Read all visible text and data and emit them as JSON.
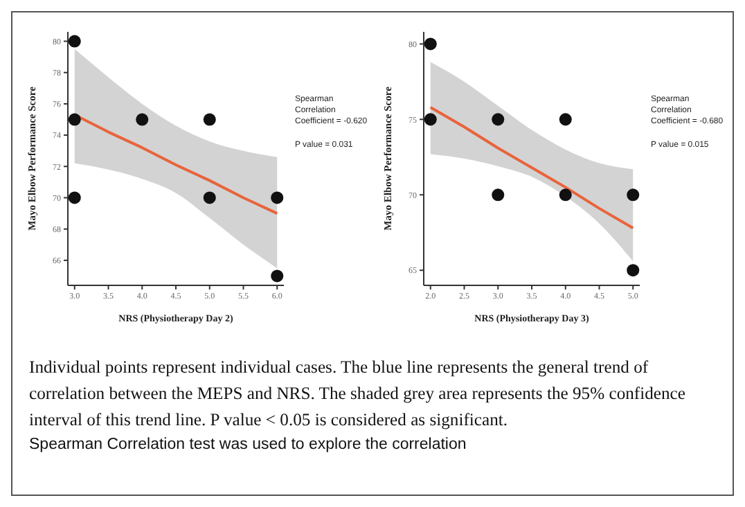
{
  "chart_data": [
    {
      "type": "scatter",
      "xlabel": "NRS (Physiotherapy Day 2)",
      "ylabel": "Mayo Elbow Performance Score",
      "xlim": [
        2.9,
        6.1
      ],
      "xticks": [
        {
          "value": 3,
          "label": "3.0"
        },
        3.5,
        {
          "value": 4,
          "label": "4.0"
        },
        4.5,
        {
          "value": 5,
          "label": "5.0"
        },
        5.5,
        {
          "value": 6,
          "label": "6.0"
        }
      ],
      "ylim": [
        64.4,
        80.6
      ],
      "yticks": [
        66,
        68,
        70,
        72,
        74,
        76,
        78,
        80
      ],
      "grid": false,
      "annotations": [
        "Spearman Correlation Coefficient = -0.620",
        "P value = 0.031",
        "Individual points represent individual cases. The blue line represents the general trend of correlation between the MEPS and NRS. The shaded grey area represents the 95% confidence interval of this trend line. P value < 0.05 is considered as significant.",
        "Spearman Correlation test was used to explore the correlation"
      ],
      "series": [
        {
          "color": "#111111",
          "marker": "circle",
          "x": [
            3,
            3,
            3,
            4,
            5,
            5,
            6,
            6
          ],
          "values": [
            80,
            75,
            70,
            75,
            75,
            70,
            70,
            65
          ]
        },
        {
          "type": "line",
          "marker": "none",
          "color": "#e8643c",
          "x": [
            3,
            3.5,
            4,
            4.5,
            5,
            5.5,
            6
          ],
          "values": [
            75.3,
            74.2,
            73.2,
            72.1,
            71.1,
            70.0,
            69.0
          ],
          "lower": [
            72.2,
            71.8,
            71.2,
            70.3,
            68.7,
            67.0,
            65.5
          ],
          "upper": [
            79.5,
            77.7,
            76.0,
            74.6,
            73.6,
            73.0,
            72.6
          ]
        }
      ]
    },
    {
      "type": "scatter",
      "xlabel": "NRS (Physiotherapy Day 3)",
      "ylabel": "Mayo Elbow Performance Score",
      "xlim": [
        1.9,
        5.1
      ],
      "xticks": [
        {
          "value": 2,
          "label": "2.0"
        },
        2.5,
        {
          "value": 3,
          "label": "3.0"
        },
        3.5,
        {
          "value": 4,
          "label": "4.0"
        },
        4.5,
        {
          "value": 5,
          "label": "5.0"
        }
      ],
      "ylim": [
        64.0,
        80.8
      ],
      "yticks": [
        65,
        70,
        75,
        80
      ],
      "grid": false,
      "annotations": [
        "Spearman Correlation Coefficient = -0.680",
        "P value = 0.015"
      ],
      "series": [
        {
          "color": "#111111",
          "marker": "circle",
          "x": [
            2,
            2,
            3,
            3,
            4,
            4,
            5,
            5
          ],
          "values": [
            80,
            75,
            75,
            70,
            75,
            70,
            70,
            65
          ]
        },
        {
          "type": "line",
          "marker": "none",
          "color": "#e8643c",
          "x": [
            2,
            2.5,
            3,
            3.5,
            4,
            4.5,
            5
          ],
          "values": [
            75.8,
            74.5,
            73.1,
            71.8,
            70.5,
            69.1,
            67.8
          ],
          "lower": [
            72.7,
            72.4,
            71.9,
            71.2,
            69.9,
            68.1,
            65.6
          ],
          "upper": [
            78.8,
            77.5,
            75.9,
            74.3,
            73.0,
            72.1,
            71.7
          ]
        }
      ]
    }
  ]
}
